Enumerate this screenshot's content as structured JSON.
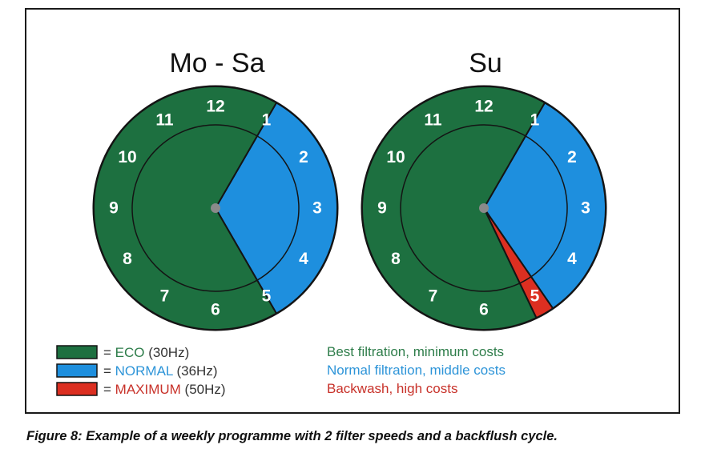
{
  "colors": {
    "eco": "#1d7040",
    "normal": "#1e8fde",
    "maximum": "#dc2f21",
    "eco_text": "#2e7d4a",
    "normal_text": "#2d94d8",
    "maximum_text": "#c8322a",
    "outline": "#141414",
    "hub": "#8a8a8a"
  },
  "clocks": [
    {
      "title": "Mo - Sa",
      "hours": [
        "12",
        "1",
        "2",
        "3",
        "4",
        "5",
        "6",
        "7",
        "8",
        "9",
        "10",
        "11"
      ],
      "segments": [
        {
          "speed": "normal",
          "start_hour": 1,
          "end_hour": 5
        },
        {
          "speed": "eco",
          "start_hour": 5,
          "end_hour": 1
        }
      ]
    },
    {
      "title": "Su",
      "hours": [
        "12",
        "1",
        "2",
        "3",
        "4",
        "5",
        "6",
        "7",
        "8",
        "9",
        "10",
        "11"
      ],
      "segments": [
        {
          "speed": "normal",
          "start_hour": 1,
          "end_hour": 4.85
        },
        {
          "speed": "maximum",
          "start_hour": 4.85,
          "end_hour": 5.15
        },
        {
          "speed": "eco",
          "start_hour": 5.15,
          "end_hour": 1
        }
      ]
    }
  ],
  "legend": [
    {
      "speed": "eco",
      "prefix": "= ",
      "name": "ECO",
      "freq": " (30Hz)",
      "description": "Best filtration, minimum costs"
    },
    {
      "speed": "normal",
      "prefix": "= ",
      "name": "NORMAL",
      "freq": " (36Hz)",
      "description": "Normal filtration, middle costs"
    },
    {
      "speed": "maximum",
      "prefix": "= ",
      "name": "MAXIMUM",
      "freq": " (50Hz)",
      "description": "Backwash, high costs"
    }
  ],
  "caption": "Figure 8: Example of a weekly programme with 2 filter speeds and a backflush cycle."
}
